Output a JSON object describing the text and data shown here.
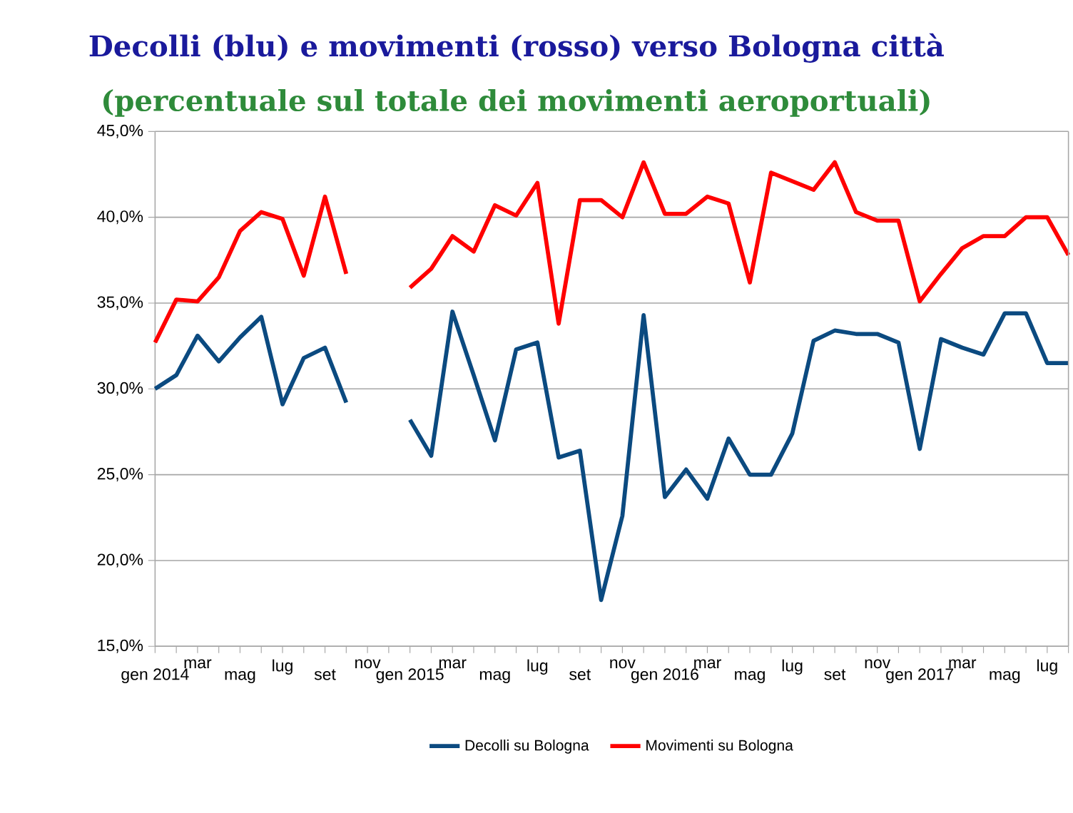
{
  "chart_data": {
    "type": "line",
    "title": "Decolli (blu) e movimenti (rosso) verso Bologna città",
    "subtitle": "(percentuale sul totale dei movimenti aeroportuali)",
    "categories": [
      "gen 2014",
      null,
      "mar",
      null,
      "mag",
      null,
      "lug",
      null,
      "set",
      null,
      "nov",
      null,
      "gen 2015",
      null,
      "mar",
      null,
      "mag",
      null,
      "lug",
      null,
      "set",
      null,
      "nov",
      null,
      "gen 2016",
      null,
      "mar",
      null,
      "mag",
      null,
      "lug",
      null,
      "set",
      null,
      "nov",
      null,
      "gen 2017",
      null,
      "mar",
      null,
      "mag",
      null,
      "lug",
      null
    ],
    "series": [
      {
        "name": "Decolli su Bologna",
        "color": "#0b4a80",
        "values": [
          30.0,
          30.8,
          33.1,
          31.6,
          33.0,
          34.2,
          29.1,
          31.8,
          32.4,
          29.2,
          null,
          null,
          28.2,
          26.1,
          34.5,
          30.8,
          27.0,
          32.3,
          32.7,
          26.0,
          26.4,
          17.7,
          22.6,
          34.3,
          23.7,
          25.3,
          23.6,
          27.1,
          25.0,
          25.0,
          27.4,
          32.8,
          33.4,
          33.2,
          33.2,
          32.7,
          26.5,
          32.9,
          32.4,
          32.0,
          34.4,
          34.4,
          31.5,
          31.5
        ]
      },
      {
        "name": "Movimenti su Bologna",
        "color": "#ff0000",
        "values": [
          32.7,
          35.2,
          35.1,
          36.5,
          39.2,
          40.3,
          39.9,
          36.6,
          41.2,
          36.7,
          null,
          null,
          35.9,
          37.0,
          38.9,
          38.0,
          40.7,
          40.1,
          42.0,
          33.8,
          41.0,
          41.0,
          40.0,
          43.2,
          40.2,
          40.2,
          41.2,
          40.8,
          36.2,
          42.6,
          42.1,
          41.6,
          43.2,
          40.3,
          39.8,
          39.8,
          35.1,
          36.7,
          38.2,
          38.9,
          38.9,
          40.0,
          40.0,
          37.8
        ]
      }
    ],
    "ylim": [
      15,
      45
    ],
    "yticks": [
      {
        "value": 15,
        "label": "15,0%"
      },
      {
        "value": 20,
        "label": "20,0%"
      },
      {
        "value": 25,
        "label": "25,0%"
      },
      {
        "value": 30,
        "label": "30,0%"
      },
      {
        "value": 35,
        "label": "35,0%"
      },
      {
        "value": 40,
        "label": "40,0%"
      },
      {
        "value": 45,
        "label": "45,0%"
      }
    ],
    "grid": "y",
    "legend": "bottom",
    "line_style": "solid",
    "marker": "none"
  }
}
